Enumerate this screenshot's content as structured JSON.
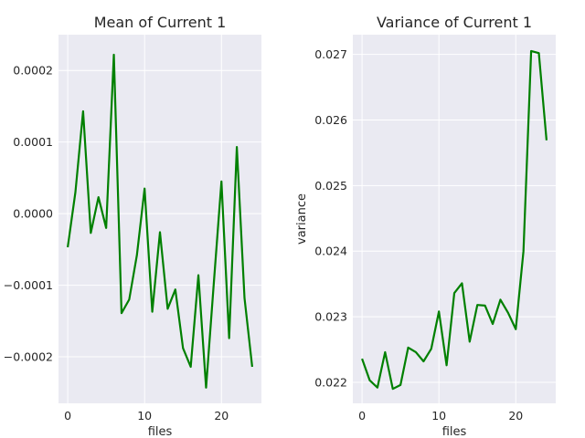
{
  "chart_data": [
    {
      "type": "line",
      "title": "Mean of Current 1",
      "xlabel": "files",
      "ylabel": "",
      "xlim": [
        -1.2,
        25.2
      ],
      "ylim": [
        -0.000265,
        0.00025
      ],
      "xticks": [
        0,
        10,
        20
      ],
      "xtick_labels": [
        "0",
        "10",
        "20"
      ],
      "yticks": [
        -0.0002,
        -0.0001,
        0.0,
        0.0001,
        0.0002
      ],
      "ytick_labels": [
        "−0.0002",
        "−0.0001",
        "0.0000",
        "0.0001",
        "0.0002"
      ],
      "grid": true,
      "color": "#008000",
      "x": [
        0,
        1,
        2,
        3,
        4,
        5,
        6,
        7,
        8,
        9,
        10,
        11,
        12,
        13,
        14,
        15,
        16,
        17,
        18,
        19,
        20,
        21,
        22,
        23,
        24
      ],
      "values": [
        -4.7e-05,
        3e-05,
        0.000143,
        -2.7e-05,
        2.3e-05,
        -2e-05,
        0.000222,
        -0.000139,
        -0.00012,
        -5.8e-05,
        3.5e-05,
        -0.000137,
        -2.6e-05,
        -0.000133,
        -0.000106,
        -0.000188,
        -0.000214,
        -8.6e-05,
        -0.000243,
        -9.8e-05,
        4.5e-05,
        -0.000174,
        9.3e-05,
        -0.000118,
        -0.000214
      ]
    },
    {
      "type": "line",
      "title": "Variance of Current 1",
      "xlabel": "files",
      "ylabel": "variance",
      "xlim": [
        -1.2,
        25.2
      ],
      "ylim": [
        0.02168,
        0.0273
      ],
      "xticks": [
        0,
        10,
        20
      ],
      "xtick_labels": [
        "0",
        "10",
        "20"
      ],
      "yticks": [
        0.022,
        0.023,
        0.024,
        0.025,
        0.026,
        0.027
      ],
      "ytick_labels": [
        "0.022",
        "0.023",
        "0.024",
        "0.025",
        "0.026",
        "0.027"
      ],
      "grid": true,
      "color": "#008000",
      "x": [
        0,
        1,
        2,
        3,
        4,
        5,
        6,
        7,
        8,
        9,
        10,
        11,
        12,
        13,
        14,
        15,
        16,
        17,
        18,
        19,
        20,
        21,
        22,
        23,
        24
      ],
      "values": [
        0.02236,
        0.02203,
        0.02192,
        0.02246,
        0.0219,
        0.02196,
        0.02253,
        0.02246,
        0.02232,
        0.02251,
        0.02308,
        0.02226,
        0.02336,
        0.02351,
        0.02262,
        0.02318,
        0.02317,
        0.02289,
        0.02326,
        0.02306,
        0.02281,
        0.024,
        0.02705,
        0.02702,
        0.02569
      ]
    }
  ]
}
